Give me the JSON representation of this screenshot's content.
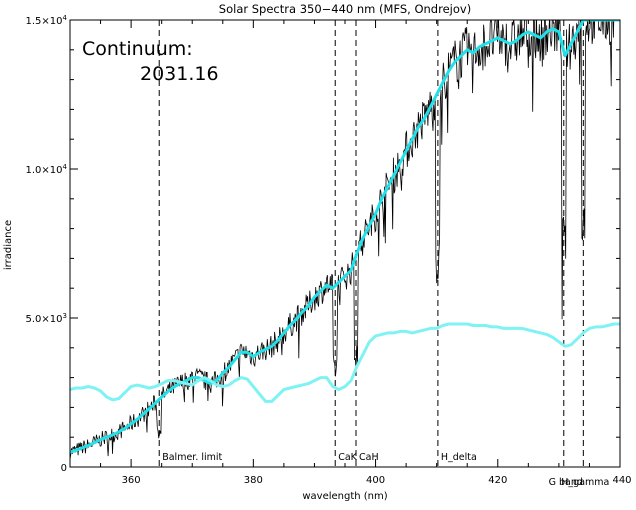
{
  "chart_data": {
    "type": "line",
    "title": "Solar Spectra 350−440 nm (MFS, Ondrejov)",
    "xlabel": "wavelength (nm)",
    "ylabel": "irradiance",
    "xlim": [
      350,
      440
    ],
    "ylim": [
      0,
      15000
    ],
    "x_ticks": [
      {
        "value": 360,
        "label": "360"
      },
      {
        "value": 380,
        "label": "380"
      },
      {
        "value": 400,
        "label": "400"
      },
      {
        "value": 420,
        "label": "420"
      },
      {
        "value": 440,
        "label": "440"
      }
    ],
    "y_ticks": [
      {
        "value": 0,
        "label": "0",
        "exp": ""
      },
      {
        "value": 5000,
        "label": "5.0×10",
        "exp": "3"
      },
      {
        "value": 10000,
        "label": "1.0×10",
        "exp": "4"
      },
      {
        "value": 15000,
        "label": "1.5×10",
        "exp": "4"
      }
    ],
    "annotation": {
      "label": "Continuum:",
      "value": "2031.16"
    },
    "reference_lines": [
      {
        "x": 364.6,
        "label": "Balmer. limit"
      },
      {
        "x": 393.4,
        "label": "CaK"
      },
      {
        "x": 396.8,
        "label": "CaH"
      },
      {
        "x": 410.2,
        "label": "H_delta"
      },
      {
        "x": 430.8,
        "label": "G band"
      },
      {
        "x": 434.0,
        "label": "H_gamma"
      }
    ],
    "colors": {
      "spectrum": "#000000",
      "smoothed": "#22e0e8",
      "continuum": "#7ff2f4"
    },
    "series": [
      {
        "x": [
          350,
          351,
          352,
          353,
          354,
          355,
          356,
          357,
          358,
          359,
          360,
          361,
          362,
          363,
          364,
          365,
          366,
          367,
          368,
          369,
          370,
          371,
          372,
          373,
          374,
          375,
          376,
          377,
          378,
          379,
          380,
          381,
          382,
          383,
          384,
          385,
          386,
          387,
          388,
          389,
          390,
          391,
          392,
          393,
          394,
          395,
          396,
          397,
          398,
          399,
          400,
          401,
          402,
          403,
          404,
          405,
          406,
          407,
          408,
          409,
          410,
          411,
          412,
          413,
          414,
          415,
          416,
          417,
          418,
          419,
          420,
          421,
          422,
          423,
          424,
          425,
          426,
          427,
          428,
          429,
          430,
          431,
          432,
          433,
          434,
          435,
          436,
          437,
          438,
          439,
          440
        ],
        "values": [
          500,
          560,
          640,
          720,
          820,
          920,
          1000,
          1080,
          1180,
          1300,
          1450,
          1600,
          1780,
          1960,
          2150,
          2350,
          2530,
          2680,
          2800,
          2900,
          3000,
          3000,
          2900,
          2800,
          2900,
          3150,
          3350,
          3600,
          3850,
          3850,
          3700,
          3850,
          3950,
          4050,
          4250,
          4500,
          4750,
          4950,
          5200,
          5400,
          5700,
          5900,
          6100,
          6000,
          6200,
          6400,
          6600,
          7200,
          7700,
          8100,
          8500,
          9000,
          9400,
          9800,
          10200,
          10600,
          11000,
          11400,
          11700,
          12100,
          12500,
          12900,
          13300,
          13600,
          13800,
          14000,
          13900,
          14100,
          14200,
          14300,
          14400,
          14300,
          14200,
          14300,
          14500,
          14600,
          14500,
          14400,
          14600,
          14700,
          14600,
          13800,
          14200,
          14600,
          15000,
          15000,
          15000,
          15000,
          15000,
          15000,
          15000
        ],
        "noise": 380
      },
      {
        "x": [
          350,
          351,
          352,
          353,
          354,
          355,
          356,
          357,
          358,
          359,
          360,
          361,
          362,
          363,
          364,
          365,
          366,
          367,
          368,
          369,
          370,
          371,
          372,
          373,
          374,
          375,
          376,
          377,
          378,
          379,
          380,
          381,
          382,
          383,
          384,
          385,
          386,
          387,
          388,
          389,
          390,
          391,
          392,
          393,
          394,
          395,
          396,
          397,
          398,
          399,
          400,
          401,
          402,
          403,
          404,
          405,
          406,
          407,
          408,
          409,
          410,
          411,
          412,
          413,
          414,
          415,
          416,
          417,
          418,
          419,
          420,
          421,
          422,
          423,
          424,
          425,
          426,
          427,
          428,
          429,
          430,
          431,
          432,
          433,
          434,
          435,
          436,
          437,
          438,
          439,
          440
        ],
        "values": [
          500,
          560,
          640,
          720,
          820,
          920,
          1000,
          1080,
          1180,
          1300,
          1450,
          1600,
          1780,
          1960,
          2150,
          2350,
          2530,
          2680,
          2800,
          2900,
          3000,
          3000,
          2900,
          2800,
          2900,
          3150,
          3350,
          3600,
          3850,
          3850,
          3700,
          3850,
          3950,
          4050,
          4250,
          4500,
          4750,
          4950,
          5200,
          5400,
          5700,
          5900,
          6100,
          6000,
          6200,
          6400,
          6600,
          7200,
          7700,
          8100,
          8500,
          9000,
          9400,
          9800,
          10200,
          10600,
          11000,
          11400,
          11700,
          12100,
          12500,
          12900,
          13300,
          13600,
          13800,
          14000,
          13900,
          14100,
          14200,
          14300,
          14400,
          14300,
          14200,
          14300,
          14500,
          14600,
          14500,
          14400,
          14600,
          14700,
          14600,
          13800,
          14200,
          14600,
          15000,
          15000,
          15000,
          15000,
          15000,
          15000,
          15000
        ]
      },
      {
        "x": [
          350,
          351,
          352,
          353,
          354,
          355,
          356,
          357,
          358,
          359,
          360,
          361,
          362,
          363,
          364,
          365,
          366,
          367,
          368,
          369,
          370,
          371,
          372,
          373,
          374,
          375,
          376,
          377,
          378,
          379,
          380,
          381,
          382,
          383,
          384,
          385,
          386,
          387,
          388,
          389,
          390,
          391,
          392,
          393,
          394,
          395,
          396,
          397,
          398,
          399,
          400,
          401,
          402,
          403,
          404,
          405,
          406,
          407,
          408,
          409,
          410,
          411,
          412,
          413,
          414,
          415,
          416,
          417,
          418,
          419,
          420,
          421,
          422,
          423,
          424,
          425,
          426,
          427,
          428,
          429,
          430,
          431,
          432,
          433,
          434,
          435,
          436,
          437,
          438,
          439,
          440
        ],
        "values": [
          2600,
          2650,
          2650,
          2700,
          2650,
          2550,
          2350,
          2250,
          2300,
          2500,
          2700,
          2750,
          2700,
          2650,
          2700,
          2800,
          2900,
          2900,
          2850,
          2800,
          2750,
          2900,
          3000,
          2900,
          2750,
          2700,
          2750,
          2900,
          3000,
          2950,
          2700,
          2450,
          2200,
          2200,
          2400,
          2600,
          2650,
          2700,
          2750,
          2800,
          2900,
          3000,
          3000,
          2700,
          2600,
          2700,
          2900,
          3400,
          3800,
          4200,
          4400,
          4450,
          4500,
          4500,
          4550,
          4550,
          4500,
          4550,
          4600,
          4650,
          4650,
          4750,
          4800,
          4800,
          4800,
          4800,
          4750,
          4750,
          4750,
          4700,
          4700,
          4650,
          4650,
          4650,
          4650,
          4600,
          4550,
          4500,
          4450,
          4350,
          4200,
          4050,
          4100,
          4300,
          4500,
          4650,
          4700,
          4700,
          4750,
          4800,
          4800
        ]
      }
    ]
  }
}
